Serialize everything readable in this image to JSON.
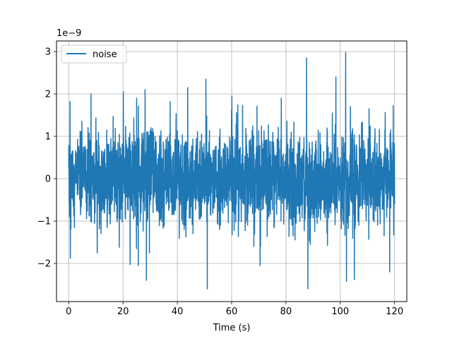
{
  "chart_data": {
    "type": "line",
    "title": "",
    "xlabel": "Time (s)",
    "ylabel": "",
    "y_offset_label": "1e−9",
    "xlim": [
      -4.5,
      124.5
    ],
    "ylim": [
      -2.9,
      3.25
    ],
    "x_ticks": [
      0,
      20,
      40,
      60,
      80,
      100,
      120
    ],
    "x_tick_labels": [
      "0",
      "20",
      "40",
      "60",
      "80",
      "100",
      "120"
    ],
    "y_ticks": [
      -2,
      -1,
      0,
      1,
      2,
      3
    ],
    "y_tick_labels": [
      "−2",
      "−1",
      "0",
      "1",
      "2",
      "3"
    ],
    "grid": true,
    "legend_location": "upper-left",
    "colors": {
      "series": "#1f77b4",
      "grid": "#b0b0b0",
      "axis": "#000000"
    },
    "series": [
      {
        "name": "noise",
        "x_start": 0,
        "x_end": 120,
        "sample_count": 2400,
        "typical_amplitude": 0.55,
        "peaks": [
          {
            "x": 0.5,
            "y": 1.82
          },
          {
            "x": 0.6,
            "y": -1.88
          },
          {
            "x": 8.2,
            "y": 2.0
          },
          {
            "x": 10.5,
            "y": -1.75
          },
          {
            "x": 20.1,
            "y": 2.05
          },
          {
            "x": 25.0,
            "y": 1.9
          },
          {
            "x": 25.6,
            "y": -2.05
          },
          {
            "x": 28.1,
            "y": 2.1
          },
          {
            "x": 28.6,
            "y": -2.4
          },
          {
            "x": 43.8,
            "y": 2.15
          },
          {
            "x": 50.5,
            "y": 2.35
          },
          {
            "x": 51.0,
            "y": -2.6
          },
          {
            "x": 60.1,
            "y": 1.95
          },
          {
            "x": 70.5,
            "y": -2.05
          },
          {
            "x": 78.3,
            "y": 1.9
          },
          {
            "x": 87.6,
            "y": 2.85
          },
          {
            "x": 88.1,
            "y": -2.6
          },
          {
            "x": 98.4,
            "y": 2.4
          },
          {
            "x": 102.0,
            "y": 2.98
          },
          {
            "x": 102.3,
            "y": -2.42
          },
          {
            "x": 105.2,
            "y": -2.38
          },
          {
            "x": 110.6,
            "y": 1.65
          },
          {
            "x": 118.2,
            "y": -2.2
          },
          {
            "x": 119.5,
            "y": 1.72
          }
        ]
      }
    ]
  }
}
